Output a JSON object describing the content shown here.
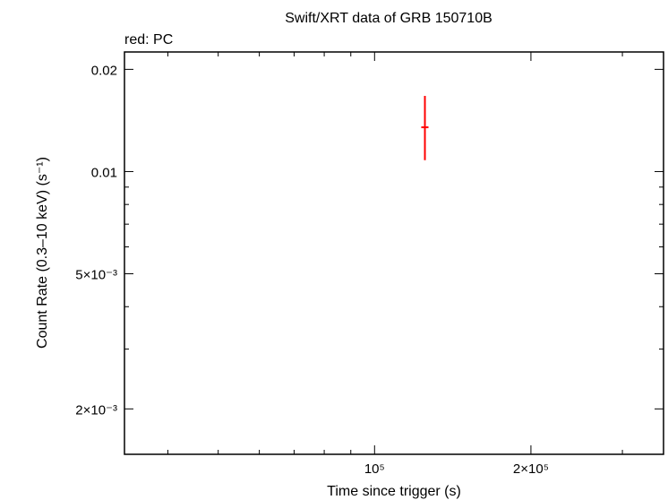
{
  "chart_data": {
    "type": "scatter",
    "title": "Swift/XRT data of GRB 150710B",
    "subtitle": "red: PC",
    "xlabel": "Time since trigger (s)",
    "ylabel": "Count Rate (0.3–10 keV) (s⁻¹)",
    "x_scale": "log",
    "y_scale": "log",
    "xlim": [
      33000,
      360000
    ],
    "ylim": [
      0.00147,
      0.0225
    ],
    "x_ticks": [
      {
        "value": 100000,
        "label": "10⁵"
      },
      {
        "value": 200000,
        "label": "2×10⁵"
      }
    ],
    "y_ticks": [
      {
        "value": 0.02,
        "label": "0.02"
      },
      {
        "value": 0.01,
        "label": "0.01"
      },
      {
        "value": 0.005,
        "label": "5×10⁻³"
      },
      {
        "value": 0.002,
        "label": "2×10⁻³"
      }
    ],
    "grid": false,
    "series": [
      {
        "name": "PC",
        "color": "#ff0000",
        "points": [
          {
            "x": 125000,
            "y": 0.0135,
            "xerr": [
              2000,
              2000
            ],
            "yerr": [
              0.0027,
              0.0032
            ]
          }
        ]
      }
    ]
  }
}
